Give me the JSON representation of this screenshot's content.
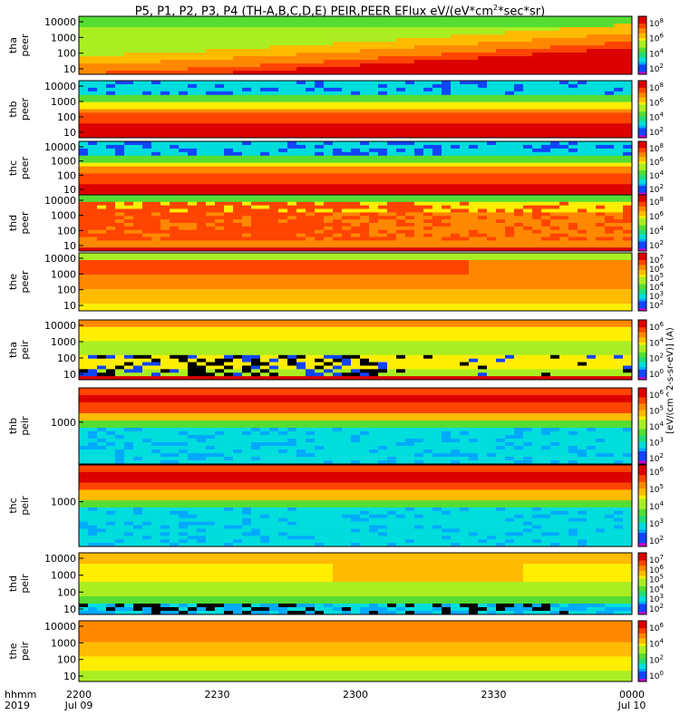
{
  "title": {
    "text": "P5, P1, P2, P3, P4 (TH-A,B,C,D,E) PEIR,PEER EFlux eV/(eV*cm",
    "exp": "2",
    "tail": "*sec*sr)"
  },
  "xaxis": {
    "origin_label_1": "hhmm",
    "origin_label_2": "2019",
    "ticks": [
      "2200",
      "2230",
      "2300",
      "2330",
      "0000"
    ],
    "dates": [
      "Jul 09",
      "",
      "",
      "",
      "Jul 10"
    ]
  },
  "colorbar_label_text": "[eV/(cm^2-s-sr-eV)] (A)",
  "colors": {
    "background": "#ffffff",
    "frame": "#000000",
    "red": "#dd0000",
    "orange": "#ff8800",
    "yellow": "#ffee00",
    "green": "#55dd33",
    "cyan": "#00dddd",
    "blue": "#1144ff",
    "black": "#000000"
  },
  "chart_data": [
    {
      "type": "heatmap",
      "probe": "tha",
      "species": "peer",
      "ylabel_1": "tha",
      "ylabel_2": "peer",
      "yscale": "log",
      "yticks": [
        "10000",
        "1000",
        "100",
        "10"
      ],
      "colorbar_ticks": [
        {
          "label": "10",
          "exp": "8"
        },
        {
          "label": "10",
          "exp": "6"
        },
        {
          "label": "10",
          "exp": "4"
        },
        {
          "label": "10",
          "exp": "2"
        }
      ]
    },
    {
      "type": "heatmap",
      "probe": "thb",
      "species": "peer",
      "ylabel_1": "thb",
      "ylabel_2": "peer",
      "yscale": "log",
      "yticks": [
        "10000",
        "1000",
        "100",
        "10"
      ],
      "colorbar_ticks": [
        {
          "label": "10",
          "exp": "8"
        },
        {
          "label": "10",
          "exp": "6"
        },
        {
          "label": "10",
          "exp": "4"
        },
        {
          "label": "10",
          "exp": "2"
        }
      ]
    },
    {
      "type": "heatmap",
      "probe": "thc",
      "species": "peer",
      "ylabel_1": "thc",
      "ylabel_2": "peer",
      "yscale": "log",
      "yticks": [
        "10000",
        "1000",
        "100",
        "10"
      ],
      "colorbar_ticks": [
        {
          "label": "10",
          "exp": "8"
        },
        {
          "label": "10",
          "exp": "6"
        },
        {
          "label": "10",
          "exp": "4"
        },
        {
          "label": "10",
          "exp": "2"
        }
      ]
    },
    {
      "type": "heatmap",
      "probe": "thd",
      "species": "peer",
      "ylabel_1": "thd",
      "ylabel_2": "peer",
      "yscale": "log",
      "yticks": [
        "10000",
        "1000",
        "100",
        "10"
      ],
      "colorbar_ticks": [
        {
          "label": "10",
          "exp": "8"
        },
        {
          "label": "10",
          "exp": "6"
        },
        {
          "label": "10",
          "exp": "4"
        },
        {
          "label": "10",
          "exp": "2"
        }
      ]
    },
    {
      "type": "heatmap",
      "probe": "the",
      "species": "peer",
      "ylabel_1": "the",
      "ylabel_2": "peer",
      "yscale": "log",
      "yticks": [
        "10000",
        "1000",
        "100",
        "10"
      ],
      "colorbar_ticks": [
        {
          "label": "10",
          "exp": "7"
        },
        {
          "label": "10",
          "exp": "6"
        },
        {
          "label": "10",
          "exp": "5"
        },
        {
          "label": "10",
          "exp": "4"
        },
        {
          "label": "10",
          "exp": "3"
        },
        {
          "label": "10",
          "exp": "2"
        }
      ]
    },
    {
      "type": "heatmap",
      "probe": "tha",
      "species": "peir",
      "ylabel_1": "tha",
      "ylabel_2": "peir",
      "yscale": "log",
      "yticks": [
        "10000",
        "1000",
        "100",
        "10"
      ],
      "colorbar_ticks": [
        {
          "label": "10",
          "exp": "6"
        },
        {
          "label": "10",
          "exp": "4"
        },
        {
          "label": "10",
          "exp": "2"
        },
        {
          "label": "10",
          "exp": "0"
        }
      ]
    },
    {
      "type": "heatmap",
      "probe": "thb",
      "species": "peir",
      "ylabel_1": "thb",
      "ylabel_2": "peir",
      "yscale": "log",
      "yticks": [
        "1000"
      ],
      "colorbar_ticks": [
        {
          "label": "10",
          "exp": "6"
        },
        {
          "label": "10",
          "exp": "5"
        },
        {
          "label": "10",
          "exp": "4"
        },
        {
          "label": "10",
          "exp": "3"
        },
        {
          "label": "10",
          "exp": "2"
        }
      ]
    },
    {
      "type": "heatmap",
      "probe": "thc",
      "species": "peir",
      "ylabel_1": "thc",
      "ylabel_2": "peir",
      "yscale": "log",
      "yticks": [
        "1000"
      ],
      "colorbar_ticks": [
        {
          "label": "10",
          "exp": "6"
        },
        {
          "label": "10",
          "exp": "5"
        },
        {
          "label": "10",
          "exp": "4"
        },
        {
          "label": "10",
          "exp": "3"
        },
        {
          "label": "10",
          "exp": "2"
        }
      ]
    },
    {
      "type": "heatmap",
      "probe": "thd",
      "species": "peir",
      "ylabel_1": "thd",
      "ylabel_2": "peir",
      "yscale": "log",
      "yticks": [
        "10000",
        "1000",
        "100",
        "10"
      ],
      "colorbar_ticks": [
        {
          "label": "10",
          "exp": "7"
        },
        {
          "label": "10",
          "exp": "6"
        },
        {
          "label": "10",
          "exp": "5"
        },
        {
          "label": "10",
          "exp": "4"
        },
        {
          "label": "10",
          "exp": "3"
        },
        {
          "label": "10",
          "exp": "2"
        }
      ]
    },
    {
      "type": "heatmap",
      "probe": "the",
      "species": "peir",
      "ylabel_1": "the",
      "ylabel_2": "peir",
      "yscale": "log",
      "yticks": [
        "10000",
        "1000",
        "100",
        "10"
      ],
      "colorbar_ticks": [
        {
          "label": "10",
          "exp": "6"
        },
        {
          "label": "10",
          "exp": "4"
        },
        {
          "label": "10",
          "exp": "2"
        },
        {
          "label": "10",
          "exp": "0"
        }
      ]
    }
  ]
}
